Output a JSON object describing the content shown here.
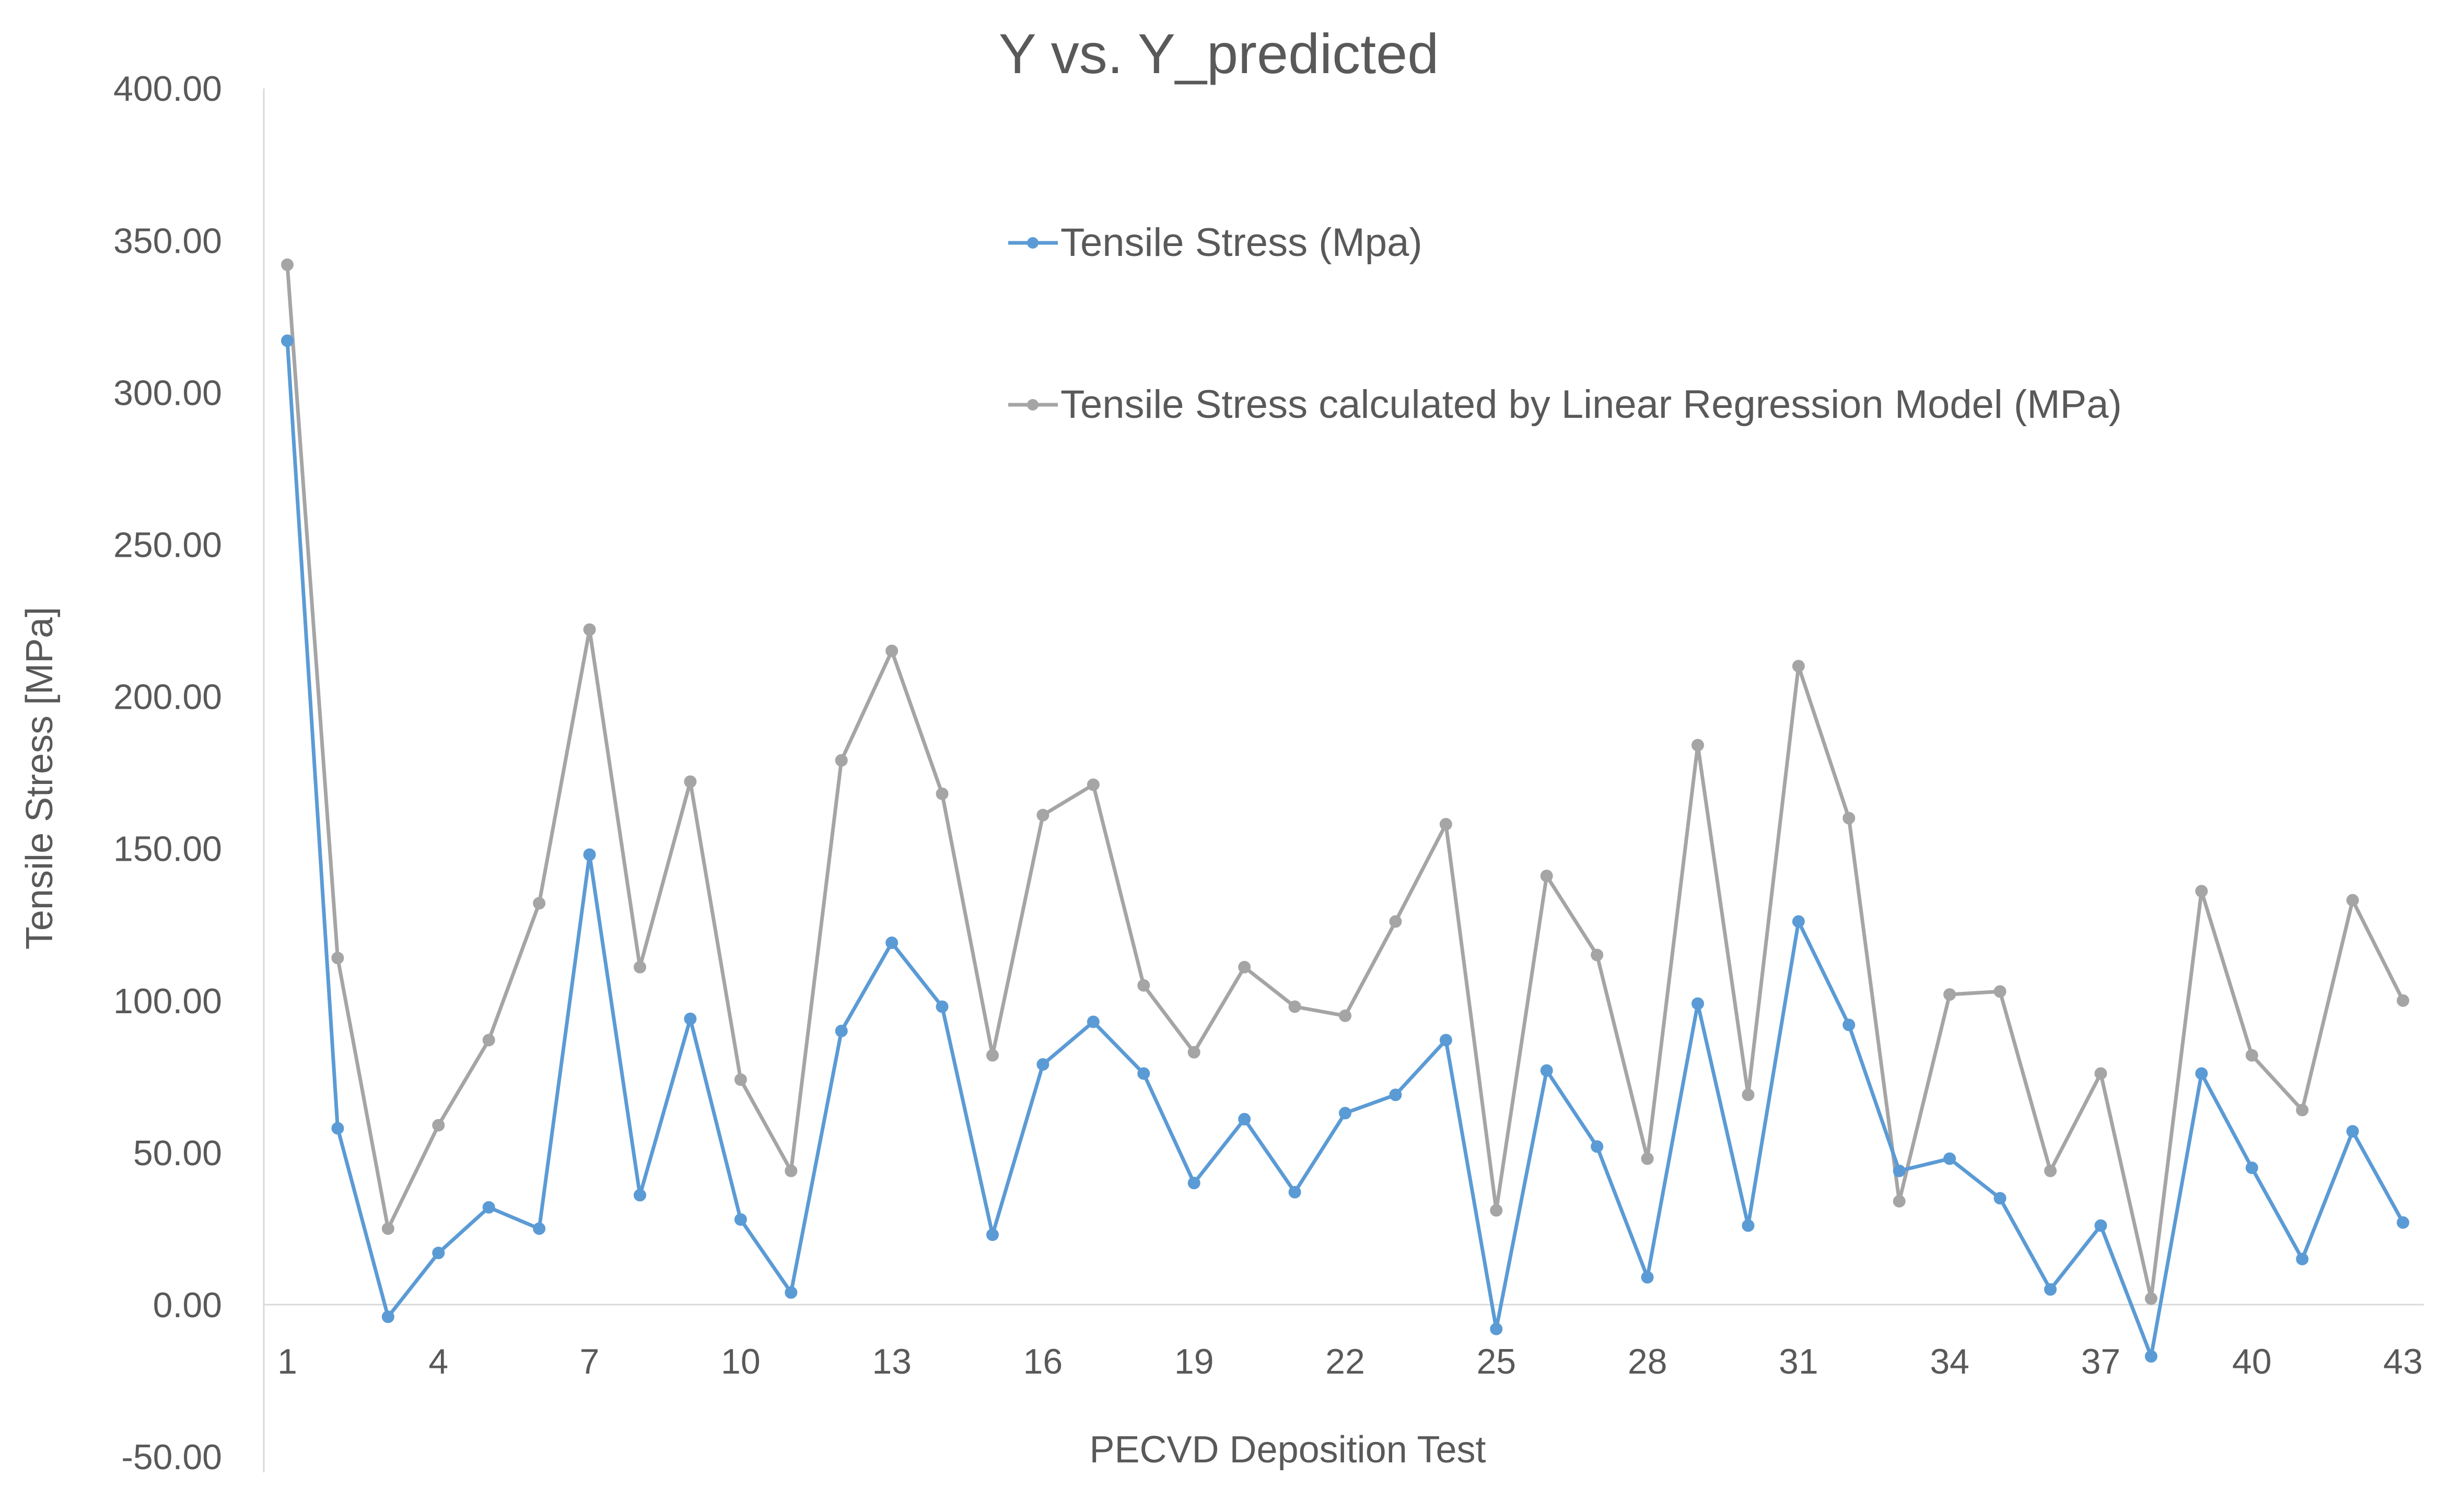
{
  "chart_data": {
    "type": "line",
    "title": "Y vs. Y_predicted",
    "xlabel": "PECVD Deposition Test",
    "ylabel": "Tensile Stress [MPa]",
    "ylim": [
      -50,
      400
    ],
    "y_ticks": [
      "400.00",
      "350.00",
      "300.00",
      "250.00",
      "200.00",
      "150.00",
      "100.00",
      "50.00",
      "0.00",
      "-50.00"
    ],
    "x_tick_labels": [
      "1",
      "4",
      "7",
      "10",
      "13",
      "16",
      "19",
      "22",
      "25",
      "28",
      "31",
      "34",
      "37",
      "40",
      "43"
    ],
    "grid": false,
    "legend_position": "top-center",
    "x": [
      1,
      2,
      3,
      4,
      5,
      6,
      7,
      8,
      9,
      10,
      11,
      12,
      13,
      14,
      15,
      16,
      17,
      18,
      19,
      20,
      21,
      22,
      23,
      24,
      25,
      26,
      27,
      28,
      29,
      30,
      31,
      32,
      33,
      34,
      35,
      36,
      37,
      38,
      39,
      40,
      41,
      42,
      43
    ],
    "series": [
      {
        "name": "Tensile Stress (Mpa)",
        "color": "#5b9bd5",
        "values": [
          317,
          58,
          -4,
          17,
          32,
          25,
          148,
          36,
          94,
          28,
          4,
          90,
          119,
          98,
          23,
          79,
          93,
          76,
          40,
          61,
          37,
          63,
          69,
          87,
          -8,
          77,
          52,
          9,
          99,
          26,
          126,
          92,
          44,
          48,
          35,
          5,
          26,
          -17,
          76,
          45,
          15,
          57,
          27
        ]
      },
      {
        "name": "Tensile Stress calculated by Linear Regression Model (MPa)",
        "color": "#a5a5a5",
        "values": [
          342,
          114,
          25,
          59,
          87,
          132,
          222,
          111,
          172,
          74,
          44,
          179,
          215,
          168,
          82,
          161,
          171,
          105,
          83,
          111,
          98,
          95,
          126,
          158,
          31,
          141,
          115,
          48,
          184,
          69,
          210,
          160,
          34,
          102,
          103,
          44,
          76,
          2,
          136,
          82,
          64,
          133,
          100
        ]
      }
    ]
  }
}
